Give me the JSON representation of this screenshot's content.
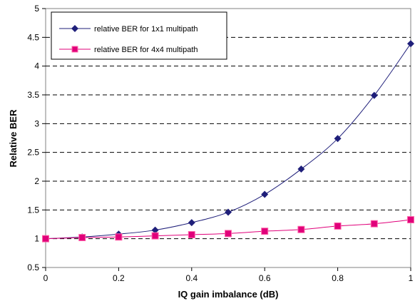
{
  "chart_data": {
    "type": "line",
    "title": "",
    "xlabel": "IQ gain imbalance (dB)",
    "ylabel": "Relative BER",
    "xlim": [
      0,
      1
    ],
    "ylim": [
      0.5,
      5
    ],
    "x_ticks": [
      "0",
      "0.2",
      "0.4",
      "0.6",
      "0.8",
      "1"
    ],
    "y_ticks": [
      "0.5",
      "1",
      "1.5",
      "2",
      "2.5",
      "3",
      "3.5",
      "4",
      "4.5",
      "5"
    ],
    "grid": "horizontal dashed",
    "legend_position": "top-left",
    "x": [
      0,
      0.1,
      0.2,
      0.3,
      0.4,
      0.5,
      0.6,
      0.7,
      0.8,
      0.9,
      1.0
    ],
    "series": [
      {
        "name": "relative BER for 1x1 multipath",
        "color": "#1f1f7a",
        "marker": "diamond",
        "values": [
          1.0,
          1.03,
          1.08,
          1.15,
          1.28,
          1.46,
          1.77,
          2.21,
          2.74,
          3.49,
          4.39
        ]
      },
      {
        "name": "relative BER for 4x4 multipath",
        "color": "#e0007a",
        "marker": "square",
        "values": [
          1.0,
          1.02,
          1.03,
          1.05,
          1.07,
          1.09,
          1.13,
          1.16,
          1.22,
          1.26,
          1.33
        ]
      }
    ]
  }
}
